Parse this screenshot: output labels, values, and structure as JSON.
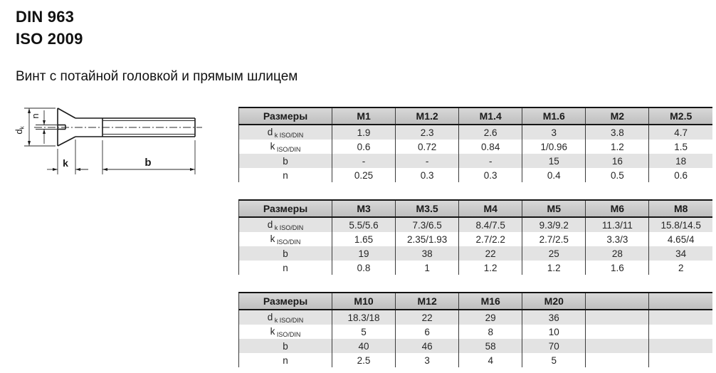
{
  "header": {
    "standard_din": "DIN 963",
    "standard_iso": "ISO 2009",
    "subtitle": "Винт с потайной головкой и прямым шлицем"
  },
  "drawing": {
    "labels": {
      "dk_main": "d",
      "dk_sub": "k",
      "n": "n",
      "k": "k",
      "b": "b"
    }
  },
  "colors": {
    "header_bg": "#c7c7c7",
    "stripe_bg": "#e3e3e3",
    "border": "#3a3a3a",
    "heavy_border": "#141414",
    "text": "#1f1f1f"
  },
  "tables": [
    {
      "name": "sizes-m1-m2.5",
      "header": [
        "Размеры",
        "M1",
        "M1.2",
        "M1.4",
        "M1.6",
        "M2",
        "M2.5"
      ],
      "rows": [
        {
          "label_main": "d",
          "label_sub": "k ISO/DIN",
          "values": [
            "1.9",
            "2.3",
            "2.6",
            "3",
            "3.8",
            "4.7"
          ]
        },
        {
          "label_main": "k",
          "label_sub": "ISO/DIN",
          "values": [
            "0.6",
            "0.72",
            "0.84",
            "1/0.96",
            "1.2",
            "1.5"
          ]
        },
        {
          "label_main": "b",
          "label_sub": "",
          "values": [
            "-",
            "-",
            "-",
            "15",
            "16",
            "18"
          ]
        },
        {
          "label_main": "n",
          "label_sub": "",
          "values": [
            "0.25",
            "0.3",
            "0.3",
            "0.4",
            "0.5",
            "0.6"
          ]
        }
      ]
    },
    {
      "name": "sizes-m3-m8",
      "header": [
        "Размеры",
        "M3",
        "M3.5",
        "M4",
        "M5",
        "M6",
        "M8"
      ],
      "rows": [
        {
          "label_main": "d",
          "label_sub": "k ISO/DIN",
          "values": [
            "5.5/5.6",
            "7.3/6.5",
            "8.4/7.5",
            "9.3/9.2",
            "11.3/11",
            "15.8/14.5"
          ]
        },
        {
          "label_main": "k",
          "label_sub": "ISO/DIN",
          "values": [
            "1.65",
            "2.35/1.93",
            "2.7/2.2",
            "2.7/2.5",
            "3.3/3",
            "4.65/4"
          ]
        },
        {
          "label_main": "b",
          "label_sub": "",
          "values": [
            "19",
            "38",
            "22",
            "25",
            "28",
            "34"
          ]
        },
        {
          "label_main": "n",
          "label_sub": "",
          "values": [
            "0.8",
            "1",
            "1.2",
            "1.2",
            "1.6",
            "2"
          ]
        }
      ]
    },
    {
      "name": "sizes-m10-m20",
      "header": [
        "Размеры",
        "M10",
        "M12",
        "M16",
        "M20",
        "",
        ""
      ],
      "rows": [
        {
          "label_main": "d",
          "label_sub": "k ISO/DIN",
          "values": [
            "18.3/18",
            "22",
            "29",
            "36",
            "",
            ""
          ]
        },
        {
          "label_main": "k",
          "label_sub": "ISO/DIN",
          "values": [
            "5",
            "6",
            "8",
            "10",
            "",
            ""
          ]
        },
        {
          "label_main": "b",
          "label_sub": "",
          "values": [
            "40",
            "46",
            "58",
            "70",
            "",
            ""
          ]
        },
        {
          "label_main": "n",
          "label_sub": "",
          "values": [
            "2.5",
            "3",
            "4",
            "5",
            "",
            ""
          ]
        }
      ]
    }
  ]
}
